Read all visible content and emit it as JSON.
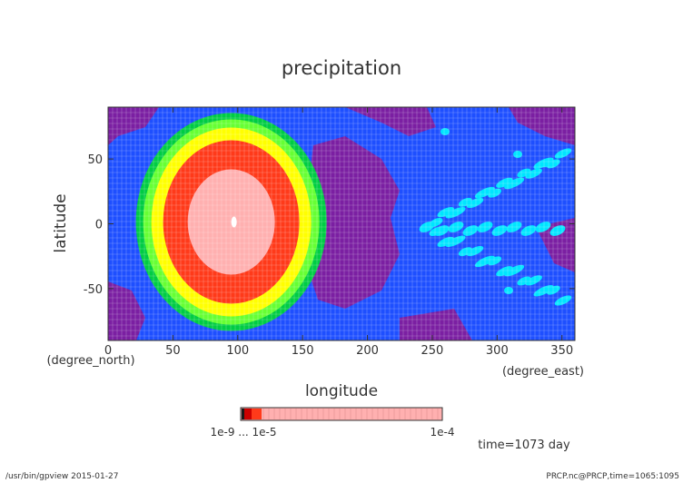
{
  "chart_data": {
    "type": "heatmap",
    "title": "precipitation",
    "xlabel": "longitude",
    "ylabel": "latitude",
    "x_unit": "(degree_east)",
    "y_unit": "(degree_north)",
    "xlim": [
      0,
      360
    ],
    "ylim": [
      -90,
      90
    ],
    "x_ticks": [
      0,
      50,
      100,
      150,
      200,
      250,
      300,
      350
    ],
    "y_ticks": [
      -50,
      0,
      50
    ],
    "colorbar": {
      "left_label": "1e-9 ... 1e-5",
      "right_label": "1e-4",
      "colors": [
        "#1a1a1a",
        "#cc0000",
        "#ff3a1a",
        "#ffb0b0"
      ]
    },
    "field_description": "Precipitation maximum centred near lon 95, lat 0 with concentric decreasing rings",
    "levels_colors": [
      "#7b1fa2",
      "#1e4fff",
      "#00e5ff",
      "#00cc44",
      "#66ff33",
      "#ffff00",
      "#ff3a1a",
      "#ffb0b0"
    ]
  },
  "annotations": {
    "time": "time=1073 day",
    "footer_left": "/usr/bin/gpview  2015-01-27",
    "footer_right": "PRCP.nc@PRCP,time=1065:1095"
  }
}
